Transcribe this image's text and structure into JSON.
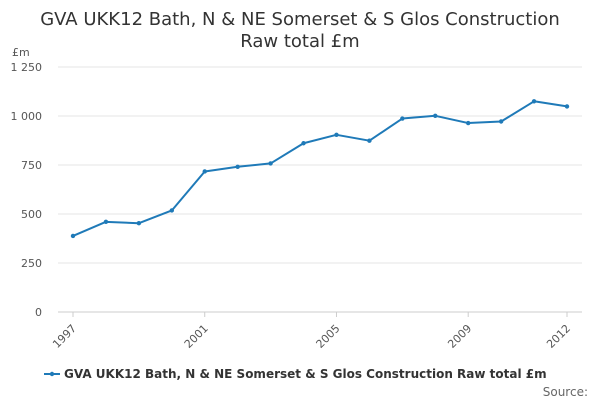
{
  "chart_data": {
    "type": "line",
    "title_line1": "GVA UKK12 Bath, N & NE Somerset & S Glos Construction",
    "title_line2": "Raw total £m",
    "ylabel": "£m",
    "xlabel": "",
    "x": [
      1997,
      1998,
      1999,
      2000,
      2001,
      2002,
      2003,
      2004,
      2005,
      2006,
      2007,
      2008,
      2009,
      2010,
      2011,
      2012
    ],
    "series": [
      {
        "name": "GVA UKK12 Bath, N & NE Somerset & S Glos Construction Raw total £m",
        "color": "#1f7ab8",
        "values": [
          388,
          460,
          453,
          518,
          717,
          741,
          758,
          861,
          904,
          874,
          987,
          1001,
          964,
          972,
          1075,
          1049
        ]
      }
    ],
    "ylim": [
      0,
      1250
    ],
    "y_ticks": [
      0,
      250,
      500,
      750,
      1000,
      1250
    ],
    "y_tick_labels": [
      "0",
      "250",
      "500",
      "750",
      "1 000",
      "1 250"
    ],
    "x_tick_labels": [
      "1997",
      "2001",
      "2005",
      "2009",
      "2012"
    ],
    "grid": "horizontal",
    "legend_position": "bottom",
    "source_label": "Source:"
  }
}
